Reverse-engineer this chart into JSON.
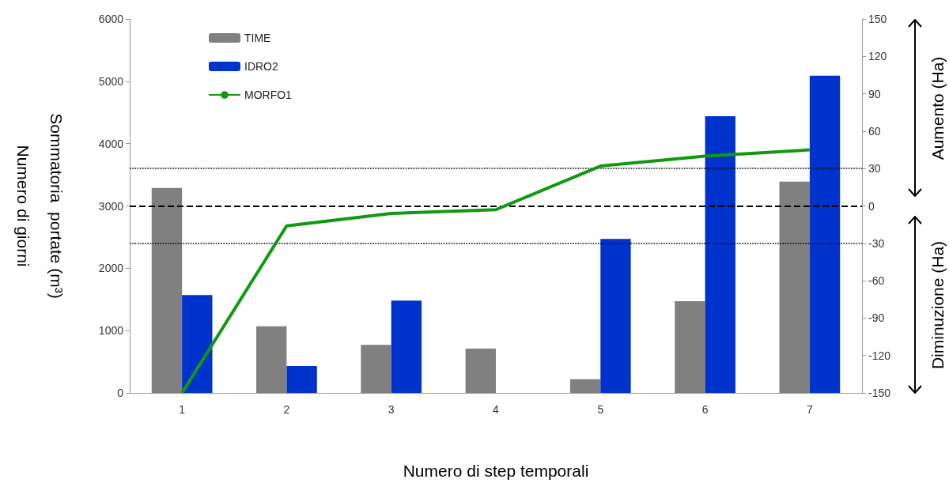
{
  "chart_data": {
    "type": "bar",
    "xlabel": "Numero di step temporali",
    "ylabel": "Sommatoria  portate (m³)\nNumero di giorni",
    "categories": [
      "1",
      "2",
      "3",
      "4",
      "5",
      "6",
      "7"
    ],
    "series": [
      {
        "name": "TIME",
        "color": "#808080",
        "values": [
          3290,
          1070,
          770,
          710,
          220,
          1470,
          3390
        ]
      },
      {
        "name": "IDRO2",
        "color": "#0033cc",
        "values": [
          1570,
          430,
          1480,
          null,
          2470,
          4440,
          5090
        ]
      },
      {
        "name": "MORFO1",
        "type": "line",
        "axis": "y2",
        "color": "#119911",
        "values": [
          -150,
          -16,
          -6,
          -3,
          32,
          40,
          45
        ]
      }
    ],
    "ylim": [
      0,
      6000
    ],
    "yticks": [
      0,
      1000,
      2000,
      3000,
      4000,
      5000,
      6000
    ],
    "y2lim": [
      -150,
      150
    ],
    "y2ticks": [
      -150,
      -120,
      -90,
      -60,
      -30,
      0,
      30,
      60,
      90,
      120,
      150
    ],
    "ref_lines": [
      {
        "axis": "y2",
        "value": 0,
        "line_style": "dashed",
        "color": "#000000"
      },
      {
        "axis": "y2",
        "value": 30,
        "line_style": "dotted",
        "color": "#000000"
      },
      {
        "axis": "y2",
        "value": -30,
        "line_style": "dotted",
        "color": "#000000"
      }
    ],
    "annotations": [
      "Aumento  (Ha)",
      "Diminuzione (Ha)"
    ],
    "legend": "top left",
    "grid": false,
    "marker": "none",
    "line_style": "solid"
  }
}
